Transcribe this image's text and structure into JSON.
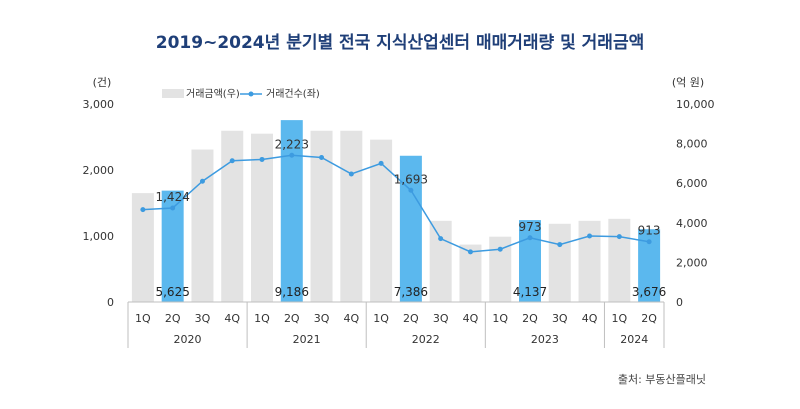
{
  "title": "2019~2024년 분기별 전국 지식산업센터 매매거래량 및 거래금액",
  "source": "출처: 부동산플래닛",
  "colors": {
    "amount_bar": "#e3e3e3",
    "highlight_bar": "#5bb8ee",
    "count_line": "#3d9be0",
    "title": "#1f3f78"
  },
  "chart_data": {
    "type": "bar",
    "categories": [
      "1Q",
      "2Q",
      "3Q",
      "4Q",
      "1Q",
      "2Q",
      "3Q",
      "4Q",
      "1Q",
      "2Q",
      "3Q",
      "4Q",
      "1Q",
      "2Q",
      "3Q",
      "4Q",
      "1Q",
      "2Q"
    ],
    "year_groups": [
      {
        "label": "2020",
        "count": 4
      },
      {
        "label": "2021",
        "count": 4
      },
      {
        "label": "2022",
        "count": 4
      },
      {
        "label": "2023",
        "count": 4
      },
      {
        "label": "2024",
        "count": 2
      }
    ],
    "left_axis": {
      "unit": "(건)",
      "min": 0,
      "max": 3000,
      "ticks": [
        "0",
        "1,000",
        "2,000",
        "3,000"
      ]
    },
    "right_axis": {
      "unit": "(억 원)",
      "min": 0,
      "max": 10000,
      "ticks": [
        "0",
        "2,000",
        "4,000",
        "6,000",
        "8,000",
        "10,000"
      ]
    },
    "series": [
      {
        "name": "거래금액(우)",
        "type": "bar",
        "axis": "right",
        "values": [
          5500,
          5625,
          7700,
          8650,
          8500,
          9186,
          8650,
          8650,
          8200,
          7386,
          4100,
          2900,
          3300,
          4137,
          3950,
          4100,
          4200,
          3676
        ],
        "highlight_index": [
          1,
          5,
          9,
          13,
          17
        ]
      },
      {
        "name": "거래건수(좌)",
        "type": "line",
        "axis": "left",
        "values": [
          1400,
          1424,
          1830,
          2140,
          2160,
          2223,
          2190,
          1940,
          2100,
          1693,
          960,
          760,
          800,
          973,
          870,
          1000,
          990,
          913
        ]
      }
    ],
    "data_labels": [
      {
        "index": 1,
        "count": "1,424",
        "amount": "5,625"
      },
      {
        "index": 5,
        "count": "2,223",
        "amount": "9,186"
      },
      {
        "index": 9,
        "count": "1,693",
        "amount": "7,386"
      },
      {
        "index": 13,
        "count": "973",
        "amount": "4,137"
      },
      {
        "index": 17,
        "count": "913",
        "amount": "3,676"
      }
    ],
    "legend_position": "top-left",
    "grid": false
  }
}
